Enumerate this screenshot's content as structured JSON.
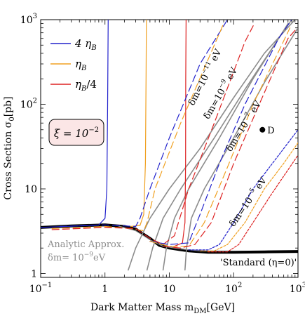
{
  "chart_data": {
    "type": "line",
    "xlabel": "Dark Matter Mass  m",
    "xlabel_sub": "DM",
    "xlabel_unit": "[GeV]",
    "ylabel": "Cross Section  σ",
    "ylabel_sub": "0",
    "ylabel_unit": "[pb]",
    "xscale": "log",
    "yscale": "log",
    "xlim": [
      0.1,
      1000
    ],
    "ylim": [
      0.9,
      1000
    ],
    "x_ticks": [
      {
        "value": 0.1,
        "base": "10",
        "exp": "−1"
      },
      {
        "value": 1,
        "base": "1",
        "exp": ""
      },
      {
        "value": 10,
        "base": "10",
        "exp": ""
      },
      {
        "value": 100,
        "base": "10",
        "exp": "2"
      },
      {
        "value": 1000,
        "base": "10",
        "exp": "3"
      }
    ],
    "y_ticks": [
      {
        "value": 1,
        "base": "1",
        "exp": ""
      },
      {
        "value": 10,
        "base": "10",
        "exp": ""
      },
      {
        "value": 100,
        "base": "10",
        "exp": "2"
      },
      {
        "value": 1000,
        "base": "10",
        "exp": "3"
      }
    ],
    "legend": {
      "placement": "top-left",
      "entries": [
        {
          "text": "4 η",
          "sub": "B",
          "suffix": "",
          "color": "#2222cc"
        },
        {
          "text": "η",
          "sub": "B",
          "suffix": "",
          "color": "#f0a020"
        },
        {
          "text": "η",
          "sub": "B",
          "suffix": "/4",
          "color": "#dd2222"
        }
      ]
    },
    "box_label": {
      "text": "ξ = 10",
      "exp": "−2"
    },
    "analytic_label": {
      "line1": "Analytic Approx.",
      "line2": "δm= 10",
      "exp": "−9",
      "unit": "eV"
    },
    "standard_label": "'Standard (η=0)'",
    "dm_labels": [
      {
        "text": "δm=10",
        "exp": "−11",
        "unit": " eV"
      },
      {
        "text": "δm=10",
        "exp": "−9",
        "unit": " eV"
      },
      {
        "text": "δm=10",
        "exp": "−7",
        "unit": " eV"
      },
      {
        "text": "δm=10",
        "exp": "−5",
        "unit": " eV"
      }
    ],
    "point": {
      "name": "D",
      "x": 280,
      "y": 50
    },
    "series": [
      {
        "kind": "standard",
        "color": "#000000",
        "style": "solid",
        "width": 4,
        "points": [
          [
            0.1,
            3.5
          ],
          [
            0.3,
            3.65
          ],
          [
            1,
            3.75
          ],
          [
            2,
            3.6
          ],
          [
            3,
            3.35
          ],
          [
            5,
            2.6
          ],
          [
            7,
            2.15
          ],
          [
            10,
            2.0
          ],
          [
            20,
            1.85
          ],
          [
            40,
            1.78
          ],
          [
            100,
            1.78
          ],
          [
            300,
            1.8
          ],
          [
            1000,
            1.82
          ]
        ]
      },
      {
        "kind": "analytic",
        "color": "#8c8c8c",
        "style": "solid",
        "width": 1.2,
        "points": [
          [
            1.5,
            3.7
          ],
          [
            3,
            3.2
          ],
          [
            5,
            2.5
          ],
          [
            8,
            2.1
          ],
          [
            15,
            1.95
          ],
          [
            30,
            1.85
          ],
          [
            40,
            1.85
          ]
        ]
      },
      {
        "kind": "gray",
        "color": "#8c8c8c",
        "style": "solid",
        "width": 1.6,
        "points": [
          [
            2.3,
            1.1
          ],
          [
            3,
            2.0
          ],
          [
            5,
            4.5
          ],
          [
            10,
            10
          ],
          [
            30,
            30
          ],
          [
            100,
            120
          ],
          [
            300,
            400
          ],
          [
            900,
            1000
          ]
        ]
      },
      {
        "kind": "gray",
        "color": "#8c8c8c",
        "style": "solid",
        "width": 1.6,
        "points": [
          [
            4.5,
            1.1
          ],
          [
            5.5,
            2.0
          ],
          [
            8,
            4.5
          ],
          [
            15,
            10
          ],
          [
            50,
            40
          ],
          [
            150,
            150
          ],
          [
            500,
            600
          ],
          [
            800,
            1000
          ]
        ]
      },
      {
        "kind": "gray",
        "color": "#8c8c8c",
        "style": "solid",
        "width": 1.6,
        "points": [
          [
            8,
            1.1
          ],
          [
            9,
            2.0
          ],
          [
            12,
            4.5
          ],
          [
            20,
            10
          ],
          [
            60,
            40
          ],
          [
            200,
            200
          ],
          [
            700,
            900
          ]
        ]
      },
      {
        "kind": "gray",
        "color": "#8c8c8c",
        "style": "solid",
        "width": 1.6,
        "points": [
          [
            17.5,
            1.1
          ],
          [
            18.5,
            2.0
          ],
          [
            22,
            4.5
          ],
          [
            35,
            10
          ],
          [
            100,
            40
          ],
          [
            300,
            180
          ],
          [
            1000,
            800
          ]
        ]
      },
      {
        "kind": "vertical",
        "color": "#2222cc",
        "style": "solid",
        "width": 1.2,
        "points": [
          [
            0.1,
            3.5
          ],
          [
            0.4,
            3.65
          ],
          [
            0.8,
            3.75
          ],
          [
            1.0,
            4.5
          ],
          [
            1.07,
            10
          ],
          [
            1.1,
            100
          ],
          [
            1.12,
            1000
          ]
        ]
      },
      {
        "kind": "vertical",
        "color": "#f0a020",
        "style": "solid",
        "width": 1.2,
        "points": [
          [
            2.5,
            3.6
          ],
          [
            3.5,
            3.7
          ],
          [
            4.0,
            5
          ],
          [
            4.25,
            20
          ],
          [
            4.35,
            200
          ],
          [
            4.4,
            1000
          ]
        ]
      },
      {
        "kind": "vertical",
        "color": "#dd2222",
        "style": "solid",
        "width": 1.2,
        "points": [
          [
            12,
            2.1
          ],
          [
            16,
            2.3
          ],
          [
            17.5,
            4
          ],
          [
            17.9,
            20
          ],
          [
            18,
            200
          ],
          [
            18.2,
            1000
          ]
        ]
      },
      {
        "kind": "dashed",
        "color": "#2222cc",
        "style": "dashed",
        "width": 1.2,
        "points": [
          [
            0.2,
            3.6
          ],
          [
            1,
            3.75
          ],
          [
            2,
            3.65
          ],
          [
            3,
            3.6
          ],
          [
            3.5,
            4.5
          ],
          [
            5,
            10
          ],
          [
            10,
            40
          ],
          [
            30,
            300
          ],
          [
            80,
            1000
          ]
        ]
      },
      {
        "kind": "dashed",
        "color": "#f0a020",
        "style": "dashed",
        "width": 1.2,
        "points": [
          [
            0.15,
            3.4
          ],
          [
            1,
            3.6
          ],
          [
            2.5,
            3.4
          ],
          [
            4,
            3.2
          ],
          [
            4.5,
            4
          ],
          [
            6,
            10
          ],
          [
            15,
            60
          ],
          [
            50,
            500
          ],
          [
            70,
            900
          ]
        ]
      },
      {
        "kind": "dashed",
        "color": "#dd2222",
        "style": "dashed",
        "width": 1.2,
        "points": [
          [
            0.15,
            3.3
          ],
          [
            1,
            3.5
          ],
          [
            3,
            3.4
          ],
          [
            5,
            2.6
          ],
          [
            8,
            2.2
          ],
          [
            12,
            2.8
          ],
          [
            20,
            10
          ],
          [
            50,
            60
          ],
          [
            150,
            550
          ],
          [
            210,
            900
          ]
        ]
      },
      {
        "kind": "dashed",
        "color": "#2222cc",
        "style": "dashed",
        "width": 1.2,
        "points": [
          [
            5,
            2.4
          ],
          [
            10,
            2.2
          ],
          [
            20,
            2.3
          ],
          [
            30,
            5
          ],
          [
            60,
            20
          ],
          [
            150,
            100
          ],
          [
            500,
            600
          ],
          [
            800,
            1000
          ]
        ]
      },
      {
        "kind": "dashed",
        "color": "#f0a020",
        "style": "dashed",
        "width": 1.2,
        "points": [
          [
            5,
            2.4
          ],
          [
            10,
            2.1
          ],
          [
            20,
            2.1
          ],
          [
            35,
            4
          ],
          [
            80,
            18
          ],
          [
            200,
            100
          ],
          [
            600,
            560
          ],
          [
            750,
            800
          ]
        ]
      },
      {
        "kind": "dashed",
        "color": "#dd2222",
        "style": "dashed",
        "width": 1.2,
        "points": [
          [
            8,
            2.1
          ],
          [
            15,
            2.0
          ],
          [
            25,
            2.2
          ],
          [
            45,
            4
          ],
          [
            100,
            20
          ],
          [
            250,
            100
          ],
          [
            700,
            600
          ],
          [
            900,
            750
          ]
        ]
      },
      {
        "kind": "dotted",
        "color": "#2222cc",
        "style": "dotted",
        "width": 1.2,
        "points": [
          [
            20,
            1.9
          ],
          [
            40,
            1.9
          ],
          [
            60,
            2.2
          ],
          [
            100,
            4
          ],
          [
            200,
            10
          ],
          [
            400,
            20
          ],
          [
            1000,
            50
          ]
        ]
      },
      {
        "kind": "dotted",
        "color": "#f0a020",
        "style": "dotted",
        "width": 1.2,
        "points": [
          [
            30,
            1.85
          ],
          [
            50,
            1.85
          ],
          [
            80,
            2.2
          ],
          [
            150,
            4
          ],
          [
            300,
            10
          ],
          [
            600,
            20
          ],
          [
            1000,
            35
          ]
        ]
      },
      {
        "kind": "dotted",
        "color": "#dd2222",
        "style": "dotted",
        "width": 1.2,
        "points": [
          [
            40,
            1.8
          ],
          [
            80,
            1.8
          ],
          [
            120,
            2.2
          ],
          [
            200,
            4
          ],
          [
            400,
            9
          ],
          [
            1000,
            25
          ]
        ]
      }
    ]
  }
}
